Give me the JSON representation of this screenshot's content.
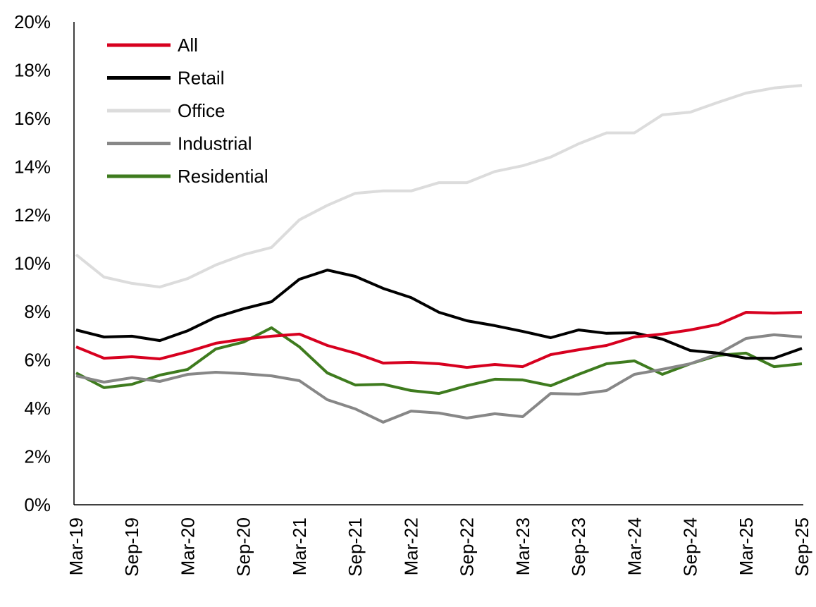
{
  "chart_data": {
    "type": "line",
    "title": "",
    "xlabel": "",
    "ylabel": "",
    "ylim": [
      0,
      20
    ],
    "yticks": [
      "0%",
      "2%",
      "4%",
      "6%",
      "8%",
      "10%",
      "12%",
      "14%",
      "16%",
      "18%",
      "20%"
    ],
    "grid": false,
    "legend_position": "top-left",
    "x": [
      "Mar-19",
      "Jun-19",
      "Sep-19",
      "Dec-19",
      "Mar-20",
      "Jun-20",
      "Sep-20",
      "Dec-20",
      "Mar-21",
      "Jun-21",
      "Sep-21",
      "Dec-21",
      "Mar-22",
      "Jun-22",
      "Sep-22",
      "Dec-22",
      "Mar-23",
      "Jun-23",
      "Sep-23",
      "Dec-23",
      "Mar-24",
      "Jun-24",
      "Sep-24",
      "Dec-24",
      "Mar-25",
      "Jun-25",
      "Sep-25"
    ],
    "xtick_labels": [
      "Mar-19",
      "Sep-19",
      "Mar-20",
      "Sep-20",
      "Mar-21",
      "Sep-21",
      "Mar-22",
      "Sep-22",
      "Mar-23",
      "Sep-23",
      "Mar-24",
      "Sep-24",
      "Mar-25",
      "Sep-25"
    ],
    "series": [
      {
        "name": "All",
        "color": "#d7001f",
        "values": [
          6.54,
          6.07,
          6.13,
          6.04,
          6.34,
          6.69,
          6.86,
          6.98,
          7.07,
          6.6,
          6.28,
          5.87,
          5.9,
          5.84,
          5.69,
          5.81,
          5.72,
          6.22,
          6.42,
          6.6,
          6.95,
          7.07,
          7.24,
          7.47,
          7.97,
          7.94,
          7.97
        ]
      },
      {
        "name": "Retail",
        "color": "#000000",
        "values": [
          7.24,
          6.95,
          6.98,
          6.8,
          7.21,
          7.77,
          8.12,
          8.41,
          9.34,
          9.72,
          9.46,
          8.96,
          8.58,
          7.97,
          7.62,
          7.42,
          7.18,
          6.92,
          7.24,
          7.1,
          7.12,
          6.86,
          6.39,
          6.28,
          6.07,
          6.07,
          6.48
        ]
      },
      {
        "name": "Office",
        "color": "#dcdcdc",
        "values": [
          10.36,
          9.43,
          9.17,
          9.02,
          9.37,
          9.93,
          10.36,
          10.66,
          11.8,
          12.4,
          12.9,
          13.0,
          13.0,
          13.34,
          13.34,
          13.8,
          14.04,
          14.4,
          14.95,
          15.4,
          15.4,
          16.15,
          16.26,
          16.67,
          17.05,
          17.26,
          17.37
        ]
      },
      {
        "name": "Industrial",
        "color": "#878787",
        "values": [
          5.34,
          5.08,
          5.26,
          5.11,
          5.4,
          5.49,
          5.43,
          5.34,
          5.14,
          4.35,
          3.97,
          3.42,
          3.88,
          3.8,
          3.59,
          3.77,
          3.65,
          4.61,
          4.58,
          4.73,
          5.4,
          5.61,
          5.84,
          6.25,
          6.89,
          7.04,
          6.95
        ]
      },
      {
        "name": "Residential",
        "color": "#3e7b1e",
        "values": [
          5.46,
          4.85,
          4.99,
          5.37,
          5.61,
          6.45,
          6.74,
          7.33,
          6.54,
          5.46,
          4.96,
          4.99,
          4.73,
          4.61,
          4.93,
          5.2,
          5.17,
          4.93,
          5.4,
          5.84,
          5.96,
          5.4,
          5.84,
          6.19,
          6.28,
          5.72,
          5.84
        ]
      }
    ]
  }
}
